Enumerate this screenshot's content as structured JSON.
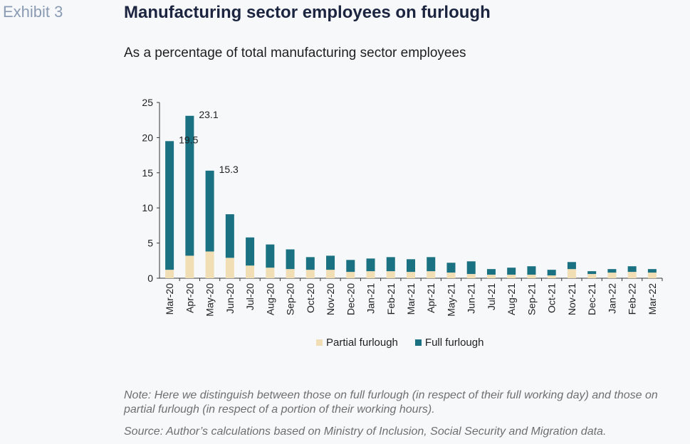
{
  "header": {
    "exhibit": "Exhibit 3",
    "title": "Manufacturing sector employees on furlough",
    "subtitle": "As a percentage of total manufacturing sector employees"
  },
  "footer": {
    "note": "Note: Here we distinguish between those on full furlough (in respect of their full working day) and those on partial furlough (in respect of a portion of their working hours).",
    "source": "Source: Author’s calculations based on Ministry of Inclusion, Social Security and Migration data."
  },
  "colors": {
    "partial": "#f1deb5",
    "full": "#1a7182"
  },
  "chart_data": {
    "type": "bar",
    "stacked": true,
    "categories": [
      "Mar-20",
      "Apr-20",
      "May-20",
      "Jun-20",
      "Jul-20",
      "Aug-20",
      "Sep-20",
      "Oct-20",
      "Nov-20",
      "Dec-20",
      "Jan-21",
      "Feb-21",
      "Mar-21",
      "Apr-21",
      "May-21",
      "Jun-21",
      "Jul-21",
      "Aug-21",
      "Sep-21",
      "Oct-21",
      "Nov-21",
      "Dec-21",
      "Jan-22",
      "Feb-22",
      "Mar-22"
    ],
    "series": [
      {
        "name": "Partial furlough",
        "values": [
          1.2,
          3.2,
          3.8,
          2.9,
          1.8,
          1.5,
          1.3,
          1.2,
          1.2,
          0.9,
          1.0,
          1.0,
          0.9,
          1.0,
          0.8,
          0.6,
          0.5,
          0.5,
          0.5,
          0.4,
          1.3,
          0.6,
          0.8,
          0.9,
          0.8
        ]
      },
      {
        "name": "Full furlough",
        "values": [
          18.3,
          19.9,
          11.5,
          6.2,
          4.0,
          3.3,
          2.8,
          1.8,
          2.0,
          1.7,
          1.8,
          2.0,
          1.8,
          2.0,
          1.4,
          1.8,
          0.8,
          1.0,
          1.2,
          0.8,
          1.0,
          0.4,
          0.5,
          0.8,
          0.5
        ]
      }
    ],
    "data_labels": [
      {
        "category": "Mar-20",
        "text": "19.5"
      },
      {
        "category": "Apr-20",
        "text": "23.1"
      },
      {
        "category": "May-20",
        "text": "15.3"
      }
    ],
    "ylim": [
      0,
      25
    ],
    "yticks": [
      0,
      5,
      10,
      15,
      20,
      25
    ],
    "xlabel": "",
    "ylabel": "",
    "grid": false,
    "legend_position": "bottom"
  }
}
